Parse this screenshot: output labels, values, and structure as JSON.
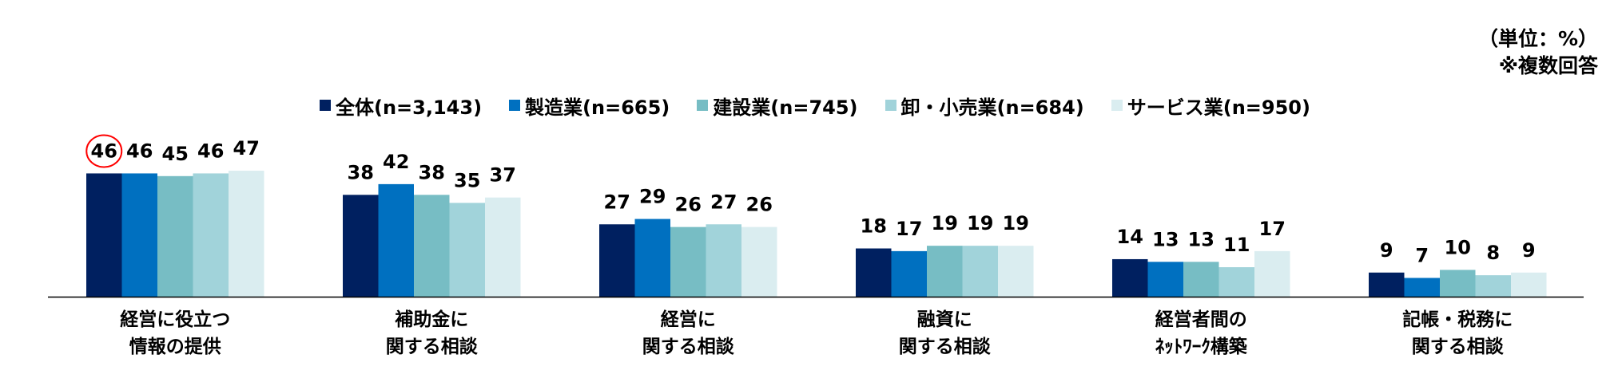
{
  "unit_note": [
    "（単位：%）",
    "※複数回答"
  ],
  "chart_data": {
    "type": "bar",
    "categories": [
      [
        "経営に役立つ",
        "情報の提供"
      ],
      [
        "補助金に",
        "関する相談"
      ],
      [
        "経営に",
        "関する相談"
      ],
      [
        "融資に",
        "関する相談"
      ],
      [
        "経営者間の",
        "ﾈｯﾄﾜｰｸ構築"
      ],
      [
        "記帳・税務に",
        "関する相談"
      ]
    ],
    "series": [
      {
        "name": "全体(n=3,143)",
        "color": "#002060",
        "values": [
          46,
          38,
          27,
          18,
          14,
          9
        ]
      },
      {
        "name": "製造業(n=665)",
        "color": "#0070C0",
        "values": [
          46,
          42,
          29,
          17,
          13,
          7
        ]
      },
      {
        "name": "建設業(n=745)",
        "color": "#77BDC4",
        "values": [
          45,
          38,
          26,
          19,
          13,
          10
        ]
      },
      {
        "name": "卸・小売業(n=684)",
        "color": "#A1D3DA",
        "values": [
          46,
          35,
          27,
          19,
          11,
          8
        ]
      },
      {
        "name": "サービス業(n=950)",
        "color": "#DAEDF0",
        "values": [
          47,
          37,
          26,
          19,
          17,
          9
        ]
      }
    ],
    "ylim": [
      0,
      50
    ],
    "grid": false,
    "legend": "top",
    "highlight": {
      "series": 0,
      "category": 0,
      "color": "#FF0000"
    }
  }
}
